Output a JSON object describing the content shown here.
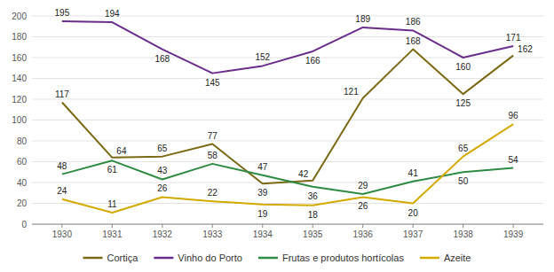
{
  "chart_data": {
    "type": "line",
    "x": [
      1930,
      1931,
      1932,
      1933,
      1934,
      1935,
      1936,
      1937,
      1938,
      1939
    ],
    "series": [
      {
        "name": "Cortiça",
        "color": "#7B6914",
        "values": [
          117,
          64,
          65,
          77,
          39,
          42,
          121,
          168,
          125,
          162
        ]
      },
      {
        "name": "Vinho do Porto",
        "color": "#6B2D8B",
        "values": [
          195,
          194,
          168,
          145,
          152,
          166,
          189,
          186,
          160,
          171
        ]
      },
      {
        "name": "Frutas e produtos hortícolas",
        "color": "#2E8B44",
        "values": [
          48,
          61,
          43,
          58,
          47,
          36,
          29,
          41,
          50,
          54
        ]
      },
      {
        "name": "Azeite",
        "color": "#D4AA00",
        "values": [
          24,
          11,
          26,
          22,
          19,
          18,
          26,
          20,
          65,
          96
        ]
      }
    ],
    "xlim": [
      1929.4,
      1939.6
    ],
    "xticks": [
      1930,
      1931,
      1932,
      1933,
      1934,
      1935,
      1936,
      1937,
      1938,
      1939
    ],
    "ylim": [
      0,
      200
    ],
    "yticks": [
      0,
      20,
      40,
      60,
      80,
      100,
      120,
      140,
      160,
      180,
      200
    ],
    "grid": true,
    "legend": "bottom",
    "data_labels": true
  }
}
